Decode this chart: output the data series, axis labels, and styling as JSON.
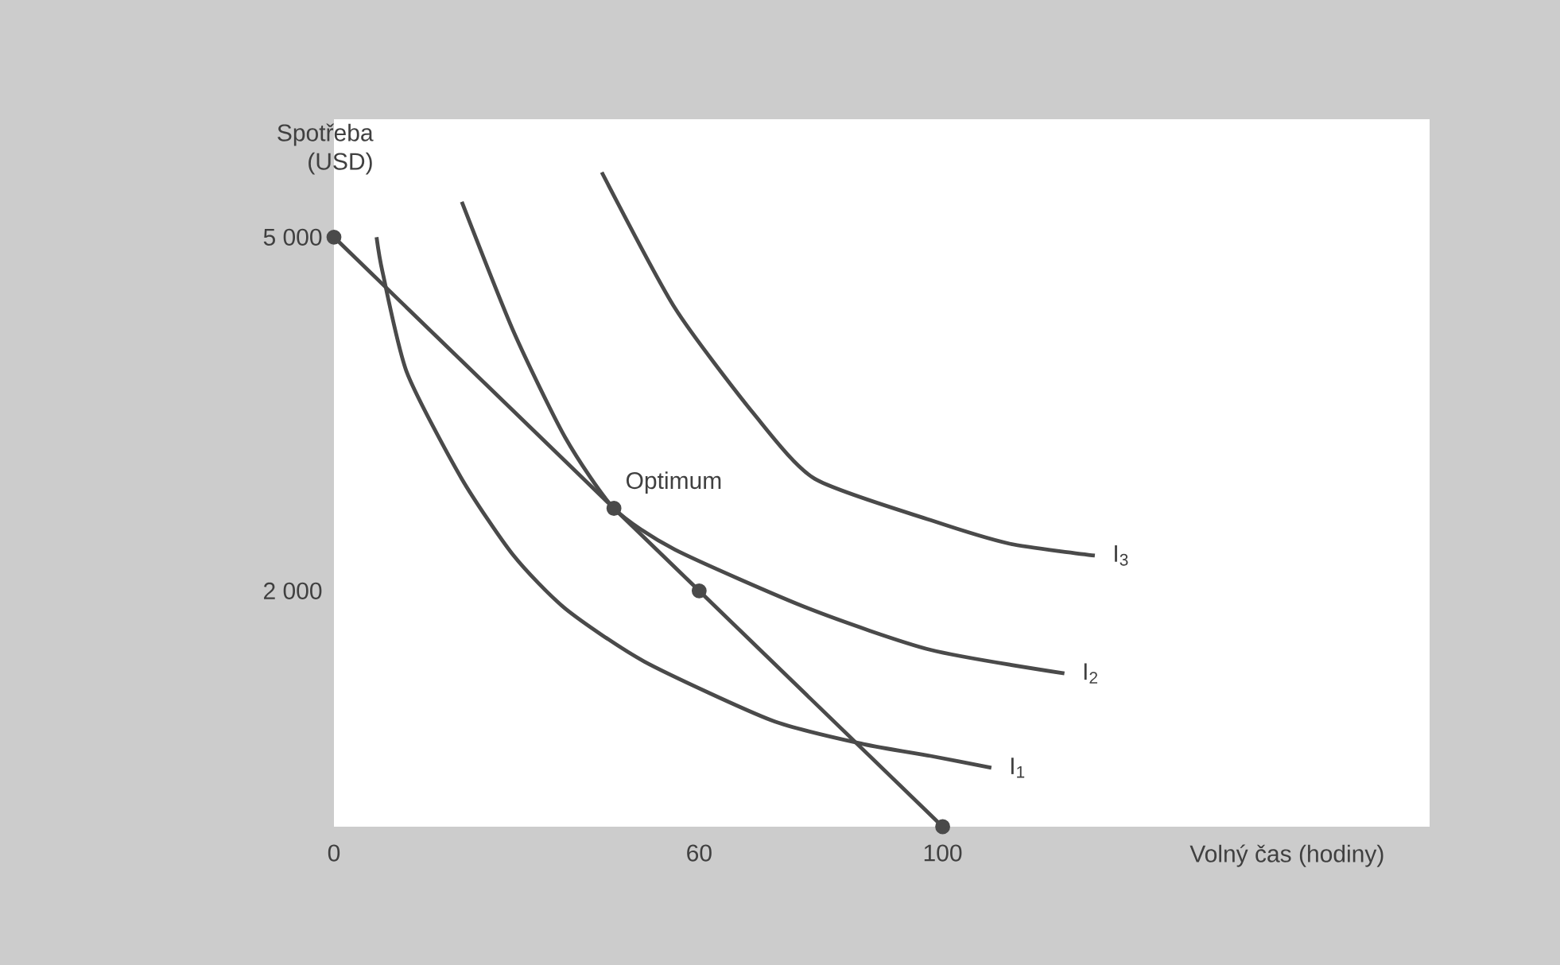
{
  "chart_data": {
    "type": "line",
    "xlabel": "Volný čas (hodiny)",
    "ylabel": "Spotřeba (USD)",
    "xlim": [
      0,
      180
    ],
    "ylim": [
      0,
      6000
    ],
    "xticks": [
      0,
      60,
      100
    ],
    "yticks": [
      {
        "value": 2000,
        "label": "2 000"
      },
      {
        "value": 5000,
        "label": "5 000"
      }
    ],
    "annotations": [
      {
        "text": "Optimum",
        "x": 46,
        "y": 2700
      }
    ],
    "series": [
      {
        "color": "#4a4a4a",
        "marker": "circle",
        "x": [
          0,
          46,
          60,
          100
        ],
        "values": [
          5000,
          2700,
          2000,
          0
        ]
      },
      {
        "name": "I$_{1}$",
        "color": "#4a4a4a",
        "x": [
          7,
          8,
          12,
          21,
          29.5,
          38,
          51,
          72,
          87,
          98,
          108
        ],
        "values": [
          5000,
          4700,
          3850,
          2950,
          2300,
          1850,
          1400,
          900,
          700,
          600,
          500
        ]
      },
      {
        "name": "I$_{2}$",
        "color": "#4a4a4a",
        "x": [
          21,
          29.5,
          38,
          46,
          56,
          78,
          98,
          120
        ],
        "values": [
          5300,
          4200,
          3300,
          2700,
          2350,
          1850,
          1500,
          1300
        ]
      },
      {
        "name": "I$_{3}$",
        "color": "#4a4a4a",
        "x": [
          44,
          56,
          69,
          79,
          98,
          111,
          125
        ],
        "values": [
          5550,
          4400,
          3500,
          2950,
          2600,
          2400,
          2300
        ]
      }
    ]
  }
}
